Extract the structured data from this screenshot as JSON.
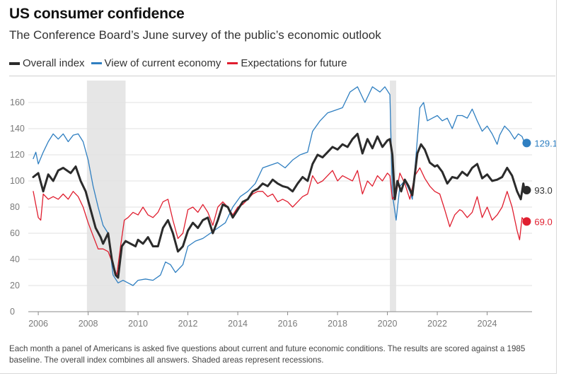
{
  "title": "US consumer confidence",
  "subtitle": "The Conference Board’s June survey of the public’s economic outlook",
  "footnote": "Each month a panel of Americans is asked five questions about current and future economic conditions. The results are scored against a 1985 baseline. The overall index combines all answers. Shaded areas represent recessions.",
  "colors": {
    "overall": "#2b2b2b",
    "current": "#2f7fc1",
    "expectations": "#e01e2f",
    "recession": "#e6e6e6",
    "grid": "#e2e2e2",
    "axis": "#8a8a8a",
    "tick_text": "#7a7a7a"
  },
  "chart_data": {
    "type": "line",
    "title": "US consumer confidence",
    "xlabel": "",
    "ylabel": "",
    "xlim": [
      2005.6,
      2025.8
    ],
    "ylim": [
      0,
      180
    ],
    "grid": true,
    "legend_placement": "top-left",
    "yticks": [
      0,
      20,
      40,
      60,
      80,
      100,
      120,
      140,
      160
    ],
    "xticks": [
      2006,
      2008,
      2010,
      2012,
      2014,
      2016,
      2018,
      2020,
      2022,
      2024
    ],
    "recessions": [
      [
        2007.95,
        2009.5
      ],
      [
        2020.1,
        2020.35
      ]
    ],
    "series": [
      {
        "name": "Overall index",
        "key": "overall",
        "end_label": "93.0",
        "points": [
          [
            2005.8,
            103
          ],
          [
            2006.0,
            106
          ],
          [
            2006.2,
            92
          ],
          [
            2006.4,
            105
          ],
          [
            2006.6,
            100
          ],
          [
            2006.8,
            108
          ],
          [
            2007.0,
            110
          ],
          [
            2007.3,
            106
          ],
          [
            2007.5,
            111
          ],
          [
            2007.7,
            100
          ],
          [
            2007.9,
            92
          ],
          [
            2008.1,
            78
          ],
          [
            2008.3,
            64
          ],
          [
            2008.5,
            57
          ],
          [
            2008.6,
            52
          ],
          [
            2008.8,
            60
          ],
          [
            2008.95,
            40
          ],
          [
            2009.1,
            28
          ],
          [
            2009.2,
            26
          ],
          [
            2009.35,
            50
          ],
          [
            2009.5,
            54
          ],
          [
            2009.7,
            52
          ],
          [
            2009.9,
            50
          ],
          [
            2010.0,
            55
          ],
          [
            2010.2,
            52
          ],
          [
            2010.4,
            57
          ],
          [
            2010.6,
            50
          ],
          [
            2010.8,
            50
          ],
          [
            2011.0,
            64
          ],
          [
            2011.2,
            70
          ],
          [
            2011.4,
            60
          ],
          [
            2011.6,
            46
          ],
          [
            2011.8,
            50
          ],
          [
            2012.0,
            62
          ],
          [
            2012.2,
            68
          ],
          [
            2012.4,
            64
          ],
          [
            2012.6,
            70
          ],
          [
            2012.8,
            72
          ],
          [
            2013.0,
            60
          ],
          [
            2013.2,
            70
          ],
          [
            2013.4,
            82
          ],
          [
            2013.6,
            80
          ],
          [
            2013.8,
            72
          ],
          [
            2014.0,
            78
          ],
          [
            2014.2,
            84
          ],
          [
            2014.4,
            86
          ],
          [
            2014.6,
            92
          ],
          [
            2014.8,
            94
          ],
          [
            2015.0,
            98
          ],
          [
            2015.2,
            96
          ],
          [
            2015.4,
            101
          ],
          [
            2015.6,
            98
          ],
          [
            2015.8,
            96
          ],
          [
            2016.0,
            95
          ],
          [
            2016.2,
            92
          ],
          [
            2016.4,
            98
          ],
          [
            2016.6,
            103
          ],
          [
            2016.8,
            100
          ],
          [
            2017.0,
            113
          ],
          [
            2017.2,
            120
          ],
          [
            2017.4,
            118
          ],
          [
            2017.6,
            122
          ],
          [
            2017.8,
            126
          ],
          [
            2018.0,
            124
          ],
          [
            2018.2,
            128
          ],
          [
            2018.4,
            126
          ],
          [
            2018.6,
            132
          ],
          [
            2018.8,
            136
          ],
          [
            2019.0,
            121
          ],
          [
            2019.2,
            132
          ],
          [
            2019.4,
            125
          ],
          [
            2019.6,
            134
          ],
          [
            2019.8,
            126
          ],
          [
            2020.0,
            131
          ],
          [
            2020.1,
            132
          ],
          [
            2020.2,
            120
          ],
          [
            2020.3,
            86
          ],
          [
            2020.4,
            100
          ],
          [
            2020.55,
            92
          ],
          [
            2020.7,
            101
          ],
          [
            2020.85,
            96
          ],
          [
            2021.0,
            89
          ],
          [
            2021.2,
            121
          ],
          [
            2021.35,
            128
          ],
          [
            2021.5,
            124
          ],
          [
            2021.7,
            114
          ],
          [
            2021.9,
            111
          ],
          [
            2022.0,
            112
          ],
          [
            2022.2,
            107
          ],
          [
            2022.4,
            98
          ],
          [
            2022.6,
            103
          ],
          [
            2022.8,
            102
          ],
          [
            2023.0,
            107
          ],
          [
            2023.2,
            104
          ],
          [
            2023.4,
            110
          ],
          [
            2023.6,
            113
          ],
          [
            2023.8,
            102
          ],
          [
            2024.0,
            105
          ],
          [
            2024.2,
            100
          ],
          [
            2024.4,
            101
          ],
          [
            2024.6,
            103
          ],
          [
            2024.8,
            110
          ],
          [
            2025.0,
            104
          ],
          [
            2025.2,
            92
          ],
          [
            2025.35,
            86
          ],
          [
            2025.45,
            98
          ],
          [
            2025.5,
            93
          ]
        ]
      },
      {
        "name": "View of current economy",
        "key": "current",
        "end_label": "129.1",
        "points": [
          [
            2005.8,
            117
          ],
          [
            2005.9,
            122
          ],
          [
            2006.0,
            113
          ],
          [
            2006.2,
            122
          ],
          [
            2006.4,
            130
          ],
          [
            2006.6,
            136
          ],
          [
            2006.8,
            132
          ],
          [
            2007.0,
            136
          ],
          [
            2007.2,
            130
          ],
          [
            2007.4,
            135
          ],
          [
            2007.6,
            136
          ],
          [
            2007.8,
            130
          ],
          [
            2008.0,
            116
          ],
          [
            2008.2,
            96
          ],
          [
            2008.4,
            80
          ],
          [
            2008.6,
            66
          ],
          [
            2008.8,
            60
          ],
          [
            2009.0,
            28
          ],
          [
            2009.2,
            22
          ],
          [
            2009.4,
            24
          ],
          [
            2009.6,
            22
          ],
          [
            2009.8,
            20
          ],
          [
            2010.0,
            24
          ],
          [
            2010.3,
            25
          ],
          [
            2010.6,
            24
          ],
          [
            2010.9,
            28
          ],
          [
            2011.1,
            38
          ],
          [
            2011.3,
            36
          ],
          [
            2011.5,
            30
          ],
          [
            2011.8,
            36
          ],
          [
            2012.0,
            50
          ],
          [
            2012.3,
            54
          ],
          [
            2012.6,
            56
          ],
          [
            2012.9,
            60
          ],
          [
            2013.2,
            64
          ],
          [
            2013.5,
            68
          ],
          [
            2013.8,
            80
          ],
          [
            2014.1,
            88
          ],
          [
            2014.4,
            92
          ],
          [
            2014.7,
            98
          ],
          [
            2015.0,
            110
          ],
          [
            2015.3,
            112
          ],
          [
            2015.6,
            114
          ],
          [
            2015.9,
            110
          ],
          [
            2016.2,
            116
          ],
          [
            2016.5,
            120
          ],
          [
            2016.8,
            122
          ],
          [
            2017.0,
            138
          ],
          [
            2017.3,
            146
          ],
          [
            2017.6,
            152
          ],
          [
            2017.9,
            154
          ],
          [
            2018.2,
            156
          ],
          [
            2018.5,
            168
          ],
          [
            2018.8,
            172
          ],
          [
            2019.1,
            160
          ],
          [
            2019.4,
            172
          ],
          [
            2019.7,
            168
          ],
          [
            2019.9,
            172
          ],
          [
            2020.1,
            166
          ],
          [
            2020.2,
            90
          ],
          [
            2020.35,
            70
          ],
          [
            2020.5,
            96
          ],
          [
            2020.7,
            100
          ],
          [
            2020.9,
            92
          ],
          [
            2021.0,
            86
          ],
          [
            2021.15,
            120
          ],
          [
            2021.3,
            156
          ],
          [
            2021.45,
            160
          ],
          [
            2021.6,
            146
          ],
          [
            2021.8,
            148
          ],
          [
            2022.0,
            150
          ],
          [
            2022.2,
            146
          ],
          [
            2022.4,
            148
          ],
          [
            2022.6,
            140
          ],
          [
            2022.8,
            150
          ],
          [
            2023.0,
            150
          ],
          [
            2023.2,
            148
          ],
          [
            2023.4,
            155
          ],
          [
            2023.6,
            146
          ],
          [
            2023.8,
            138
          ],
          [
            2024.0,
            142
          ],
          [
            2024.2,
            136
          ],
          [
            2024.4,
            128
          ],
          [
            2024.5,
            135
          ],
          [
            2024.7,
            142
          ],
          [
            2024.9,
            138
          ],
          [
            2025.1,
            132
          ],
          [
            2025.25,
            136
          ],
          [
            2025.4,
            134
          ],
          [
            2025.5,
            129
          ]
        ]
      },
      {
        "name": "Expectations for future",
        "key": "expectations",
        "end_label": "69.0",
        "points": [
          [
            2005.8,
            92
          ],
          [
            2006.0,
            72
          ],
          [
            2006.1,
            70
          ],
          [
            2006.2,
            90
          ],
          [
            2006.4,
            86
          ],
          [
            2006.6,
            88
          ],
          [
            2006.8,
            86
          ],
          [
            2007.0,
            90
          ],
          [
            2007.2,
            86
          ],
          [
            2007.4,
            92
          ],
          [
            2007.6,
            88
          ],
          [
            2007.8,
            80
          ],
          [
            2008.0,
            68
          ],
          [
            2008.2,
            58
          ],
          [
            2008.4,
            48
          ],
          [
            2008.6,
            48
          ],
          [
            2008.8,
            46
          ],
          [
            2009.0,
            36
          ],
          [
            2009.15,
            28
          ],
          [
            2009.3,
            50
          ],
          [
            2009.45,
            70
          ],
          [
            2009.6,
            72
          ],
          [
            2009.8,
            76
          ],
          [
            2010.0,
            74
          ],
          [
            2010.2,
            80
          ],
          [
            2010.4,
            74
          ],
          [
            2010.6,
            72
          ],
          [
            2010.8,
            76
          ],
          [
            2011.0,
            84
          ],
          [
            2011.2,
            86
          ],
          [
            2011.4,
            70
          ],
          [
            2011.6,
            56
          ],
          [
            2011.8,
            60
          ],
          [
            2012.0,
            78
          ],
          [
            2012.2,
            80
          ],
          [
            2012.4,
            76
          ],
          [
            2012.6,
            82
          ],
          [
            2012.8,
            76
          ],
          [
            2013.0,
            66
          ],
          [
            2013.2,
            80
          ],
          [
            2013.4,
            84
          ],
          [
            2013.6,
            80
          ],
          [
            2013.8,
            74
          ],
          [
            2014.0,
            80
          ],
          [
            2014.2,
            82
          ],
          [
            2014.4,
            86
          ],
          [
            2014.6,
            90
          ],
          [
            2014.8,
            92
          ],
          [
            2015.0,
            92
          ],
          [
            2015.2,
            88
          ],
          [
            2015.4,
            90
          ],
          [
            2015.6,
            84
          ],
          [
            2015.8,
            86
          ],
          [
            2016.0,
            84
          ],
          [
            2016.2,
            80
          ],
          [
            2016.4,
            84
          ],
          [
            2016.6,
            88
          ],
          [
            2016.8,
            90
          ],
          [
            2017.0,
            104
          ],
          [
            2017.2,
            98
          ],
          [
            2017.4,
            100
          ],
          [
            2017.6,
            104
          ],
          [
            2017.8,
            108
          ],
          [
            2018.0,
            100
          ],
          [
            2018.2,
            104
          ],
          [
            2018.4,
            102
          ],
          [
            2018.6,
            100
          ],
          [
            2018.8,
            108
          ],
          [
            2019.0,
            90
          ],
          [
            2019.2,
            100
          ],
          [
            2019.4,
            96
          ],
          [
            2019.6,
            104
          ],
          [
            2019.8,
            100
          ],
          [
            2020.0,
            106
          ],
          [
            2020.1,
            104
          ],
          [
            2020.2,
            86
          ],
          [
            2020.35,
            90
          ],
          [
            2020.5,
            106
          ],
          [
            2020.7,
            98
          ],
          [
            2020.9,
            86
          ],
          [
            2021.1,
            104
          ],
          [
            2021.3,
            110
          ],
          [
            2021.5,
            102
          ],
          [
            2021.7,
            96
          ],
          [
            2021.9,
            92
          ],
          [
            2022.1,
            90
          ],
          [
            2022.3,
            78
          ],
          [
            2022.5,
            65
          ],
          [
            2022.7,
            74
          ],
          [
            2022.9,
            78
          ],
          [
            2023.0,
            77
          ],
          [
            2023.2,
            72
          ],
          [
            2023.4,
            76
          ],
          [
            2023.6,
            88
          ],
          [
            2023.8,
            72
          ],
          [
            2024.0,
            80
          ],
          [
            2024.2,
            70
          ],
          [
            2024.4,
            74
          ],
          [
            2024.6,
            80
          ],
          [
            2024.8,
            92
          ],
          [
            2025.0,
            80
          ],
          [
            2025.2,
            62
          ],
          [
            2025.3,
            55
          ],
          [
            2025.4,
            72
          ],
          [
            2025.5,
            69
          ]
        ]
      }
    ]
  }
}
